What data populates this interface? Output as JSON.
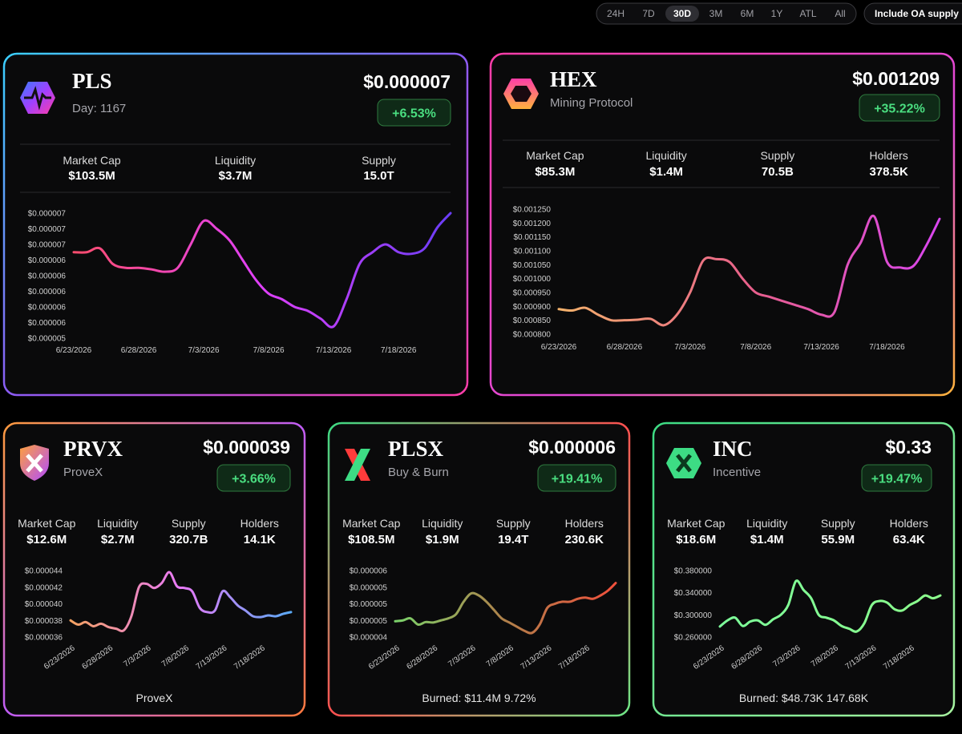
{
  "toolbar": {
    "ranges": [
      "24H",
      "7D",
      "30D",
      "3M",
      "6M",
      "1Y",
      "ATL",
      "All"
    ],
    "selected": 2,
    "oa_button": "Include OA supply"
  },
  "cards": [
    {
      "symbol": "PLS",
      "subtitle": "Day: 1167",
      "price": "$0.000007",
      "change": "+6.53%",
      "stats": [
        {
          "label": "Market Cap",
          "value": "$103.5M"
        },
        {
          "label": "Liquidity",
          "value": "$3.7M"
        },
        {
          "label": "Supply",
          "value": "15.0T"
        }
      ]
    },
    {
      "symbol": "HEX",
      "subtitle": "Mining Protocol",
      "price": "$0.001209",
      "change": "+35.22%",
      "stats": [
        {
          "label": "Market Cap",
          "value": "$85.3M"
        },
        {
          "label": "Liquidity",
          "value": "$1.4M"
        },
        {
          "label": "Supply",
          "value": "70.5B"
        },
        {
          "label": "Holders",
          "value": "378.5K"
        }
      ]
    },
    {
      "symbol": "PRVX",
      "subtitle": "ProveX",
      "price": "$0.000039",
      "change": "+3.66%",
      "stats": [
        {
          "label": "Market Cap",
          "value": "$12.6M"
        },
        {
          "label": "Liquidity",
          "value": "$2.7M"
        },
        {
          "label": "Supply",
          "value": "320.7B"
        },
        {
          "label": "Holders",
          "value": "14.1K"
        }
      ],
      "footer": "ProveX"
    },
    {
      "symbol": "PLSX",
      "subtitle": "Buy & Burn",
      "price": "$0.000006",
      "change": "+19.41%",
      "stats": [
        {
          "label": "Market Cap",
          "value": "$108.5M"
        },
        {
          "label": "Liquidity",
          "value": "$1.9M"
        },
        {
          "label": "Supply",
          "value": "19.4T"
        },
        {
          "label": "Holders",
          "value": "230.6K"
        }
      ],
      "footer": "Burned: $11.4M 9.72%"
    },
    {
      "symbol": "INC",
      "subtitle": "Incentive",
      "price": "$0.33",
      "change": "+19.47%",
      "stats": [
        {
          "label": "Market Cap",
          "value": "$18.6M"
        },
        {
          "label": "Liquidity",
          "value": "$1.4M"
        },
        {
          "label": "Supply",
          "value": "55.9M"
        },
        {
          "label": "Holders",
          "value": "63.4K"
        }
      ],
      "footer": "Burned: $48.73K 147.68K"
    }
  ],
  "chart_data": [
    {
      "type": "line",
      "colors": [
        "#ff4d6d",
        "#e040fb",
        "#6a3df7"
      ],
      "categories": [
        "6/23/2026",
        null,
        null,
        null,
        null,
        "6/28/2026",
        null,
        null,
        null,
        null,
        "7/3/2026",
        null,
        null,
        null,
        null,
        "7/8/2026",
        null,
        null,
        null,
        null,
        "7/13/2026",
        null,
        null,
        null,
        null,
        "7/18/2026",
        null,
        null,
        null,
        null
      ],
      "ylim": [
        5.4e-06,
        7e-06
      ],
      "yticks": [
        {
          "value": 5.4e-06,
          "label": "$0.000005"
        },
        {
          "value": 5.6e-06,
          "label": "$0.000006"
        },
        {
          "value": 5.8e-06,
          "label": "$0.000006"
        },
        {
          "value": 6e-06,
          "label": "$0.000006"
        },
        {
          "value": 6.2e-06,
          "label": "$0.000006"
        },
        {
          "value": 6.4e-06,
          "label": "$0.000006"
        },
        {
          "value": 6.6e-06,
          "label": "$0.000007"
        },
        {
          "value": 6.8e-06,
          "label": "$0.000007"
        },
        {
          "value": 7e-06,
          "label": "$0.000007"
        }
      ],
      "values": [
        6.5e-06,
        6.5e-06,
        6.55e-06,
        6.35e-06,
        6.3e-06,
        6.3e-06,
        6.28e-06,
        6.25e-06,
        6.3e-06,
        6.6e-06,
        6.9e-06,
        6.8e-06,
        6.65e-06,
        6.4e-06,
        6.15e-06,
        5.97e-06,
        5.9e-06,
        5.8e-06,
        5.75e-06,
        5.65e-06,
        5.55e-06,
        5.9e-06,
        6.35e-06,
        6.5e-06,
        6.6e-06,
        6.5e-06,
        6.48e-06,
        6.55e-06,
        6.82e-06,
        7e-06
      ]
    },
    {
      "type": "line",
      "colors": [
        "#f4b26b",
        "#e8608a",
        "#d946ef"
      ],
      "categories": [
        "6/23/2026",
        null,
        null,
        null,
        null,
        "6/28/2026",
        null,
        null,
        null,
        null,
        "7/3/2026",
        null,
        null,
        null,
        null,
        "7/8/2026",
        null,
        null,
        null,
        null,
        "7/13/2026",
        null,
        null,
        null,
        null,
        "7/18/2026",
        null,
        null,
        null,
        null
      ],
      "ylim": [
        0.0008,
        0.00125
      ],
      "yticks": [
        {
          "value": 0.0008,
          "label": "$0.000800"
        },
        {
          "value": 0.00085,
          "label": "$0.000850"
        },
        {
          "value": 0.0009,
          "label": "$0.000900"
        },
        {
          "value": 0.00095,
          "label": "$0.000950"
        },
        {
          "value": 0.001,
          "label": "$0.001000"
        },
        {
          "value": 0.00105,
          "label": "$0.001050"
        },
        {
          "value": 0.0011,
          "label": "$0.001100"
        },
        {
          "value": 0.00115,
          "label": "$0.001150"
        },
        {
          "value": 0.0012,
          "label": "$0.001200"
        },
        {
          "value": 0.00125,
          "label": "$0.001250"
        }
      ],
      "values": [
        0.00089,
        0.000885,
        0.000895,
        0.00087,
        0.00085,
        0.00085,
        0.000852,
        0.000855,
        0.000832,
        0.00087,
        0.00095,
        0.001065,
        0.00107,
        0.00106,
        0.001,
        0.00095,
        0.000935,
        0.00092,
        0.000905,
        0.00089,
        0.00087,
        0.00088,
        0.00105,
        0.00113,
        0.001225,
        0.00106,
        0.00104,
        0.001045,
        0.00112,
        0.001215
      ]
    },
    {
      "type": "line",
      "colors": [
        "#f4a261",
        "#e879f9",
        "#5aa9f5"
      ],
      "rotate_x_labels": true,
      "categories": [
        "6/23/2026",
        null,
        null,
        null,
        null,
        "6/28/2026",
        null,
        null,
        null,
        null,
        "7/3/2026",
        null,
        null,
        null,
        null,
        "7/8/2026",
        null,
        null,
        null,
        null,
        "7/13/2026",
        null,
        null,
        null,
        null,
        "7/18/2026",
        null,
        null,
        null,
        null
      ],
      "ylim": [
        3.6e-05,
        4.4e-05
      ],
      "yticks": [
        {
          "value": 3.6e-05,
          "label": "$0.000036"
        },
        {
          "value": 3.8e-05,
          "label": "$0.000038"
        },
        {
          "value": 4e-05,
          "label": "$0.000040"
        },
        {
          "value": 4.2e-05,
          "label": "$0.000042"
        },
        {
          "value": 4.4e-05,
          "label": "$0.000044"
        }
      ],
      "values": [
        3.8e-05,
        3.75e-05,
        3.78e-05,
        3.73e-05,
        3.76e-05,
        3.72e-05,
        3.7e-05,
        3.68e-05,
        3.85e-05,
        4.2e-05,
        4.24e-05,
        4.19e-05,
        4.25e-05,
        4.38e-05,
        4.21e-05,
        4.19e-05,
        4.15e-05,
        3.95e-05,
        3.9e-05,
        3.92e-05,
        4.15e-05,
        4.08e-05,
        3.98e-05,
        3.92e-05,
        3.85e-05,
        3.84e-05,
        3.86e-05,
        3.85e-05,
        3.88e-05,
        3.9e-05
      ]
    },
    {
      "type": "line",
      "colors": [
        "#7bd36b",
        "#b0804a",
        "#f0503c"
      ],
      "rotate_x_labels": true,
      "categories": [
        "6/23/2026",
        null,
        null,
        null,
        null,
        "6/28/2026",
        null,
        null,
        null,
        null,
        "7/3/2026",
        null,
        null,
        null,
        null,
        "7/8/2026",
        null,
        null,
        null,
        null,
        "7/13/2026",
        null,
        null,
        null,
        null,
        "7/18/2026",
        null,
        null,
        null,
        null
      ],
      "ylim": [
        4.2e-06,
        5.8e-06
      ],
      "yticks": [
        {
          "value": 4.2e-06,
          "label": "$0.000004"
        },
        {
          "value": 4.6e-06,
          "label": "$0.000005"
        },
        {
          "value": 5e-06,
          "label": "$0.000005"
        },
        {
          "value": 5.4e-06,
          "label": "$0.000005"
        },
        {
          "value": 5.8e-06,
          "label": "$0.000006"
        }
      ],
      "values": [
        4.58e-06,
        4.6e-06,
        4.65e-06,
        4.5e-06,
        4.56e-06,
        4.55e-06,
        4.6e-06,
        4.65e-06,
        4.75e-06,
        5.05e-06,
        5.25e-06,
        5.2e-06,
        5.05e-06,
        4.85e-06,
        4.65e-06,
        4.55e-06,
        4.45e-06,
        4.35e-06,
        4.3e-06,
        4.5e-06,
        4.9e-06,
        5e-06,
        5.05e-06,
        5.05e-06,
        5.12e-06,
        5.15e-06,
        5.12e-06,
        5.2e-06,
        5.32e-06,
        5.5e-06
      ]
    },
    {
      "type": "line",
      "colors": [
        "#7dff9a",
        "#8cff8c"
      ],
      "rotate_x_labels": true,
      "categories": [
        "6/23/2026",
        null,
        null,
        null,
        null,
        "6/28/2026",
        null,
        null,
        null,
        null,
        "7/3/2026",
        null,
        null,
        null,
        null,
        "7/8/2026",
        null,
        null,
        null,
        null,
        "7/13/2026",
        null,
        null,
        null,
        null,
        "7/18/2026",
        null,
        null,
        null,
        null
      ],
      "ylim": [
        0.26,
        0.38
      ],
      "yticks": [
        {
          "value": 0.26,
          "label": "$0.260000"
        },
        {
          "value": 0.3,
          "label": "$0.300000"
        },
        {
          "value": 0.34,
          "label": "$0.340000"
        },
        {
          "value": 0.38,
          "label": "$0.380000"
        }
      ],
      "values": [
        0.279,
        0.29,
        0.295,
        0.28,
        0.288,
        0.29,
        0.282,
        0.292,
        0.3,
        0.318,
        0.361,
        0.345,
        0.33,
        0.3,
        0.295,
        0.29,
        0.28,
        0.275,
        0.27,
        0.285,
        0.318,
        0.325,
        0.322,
        0.31,
        0.308,
        0.318,
        0.325,
        0.335,
        0.33,
        0.335
      ]
    }
  ]
}
